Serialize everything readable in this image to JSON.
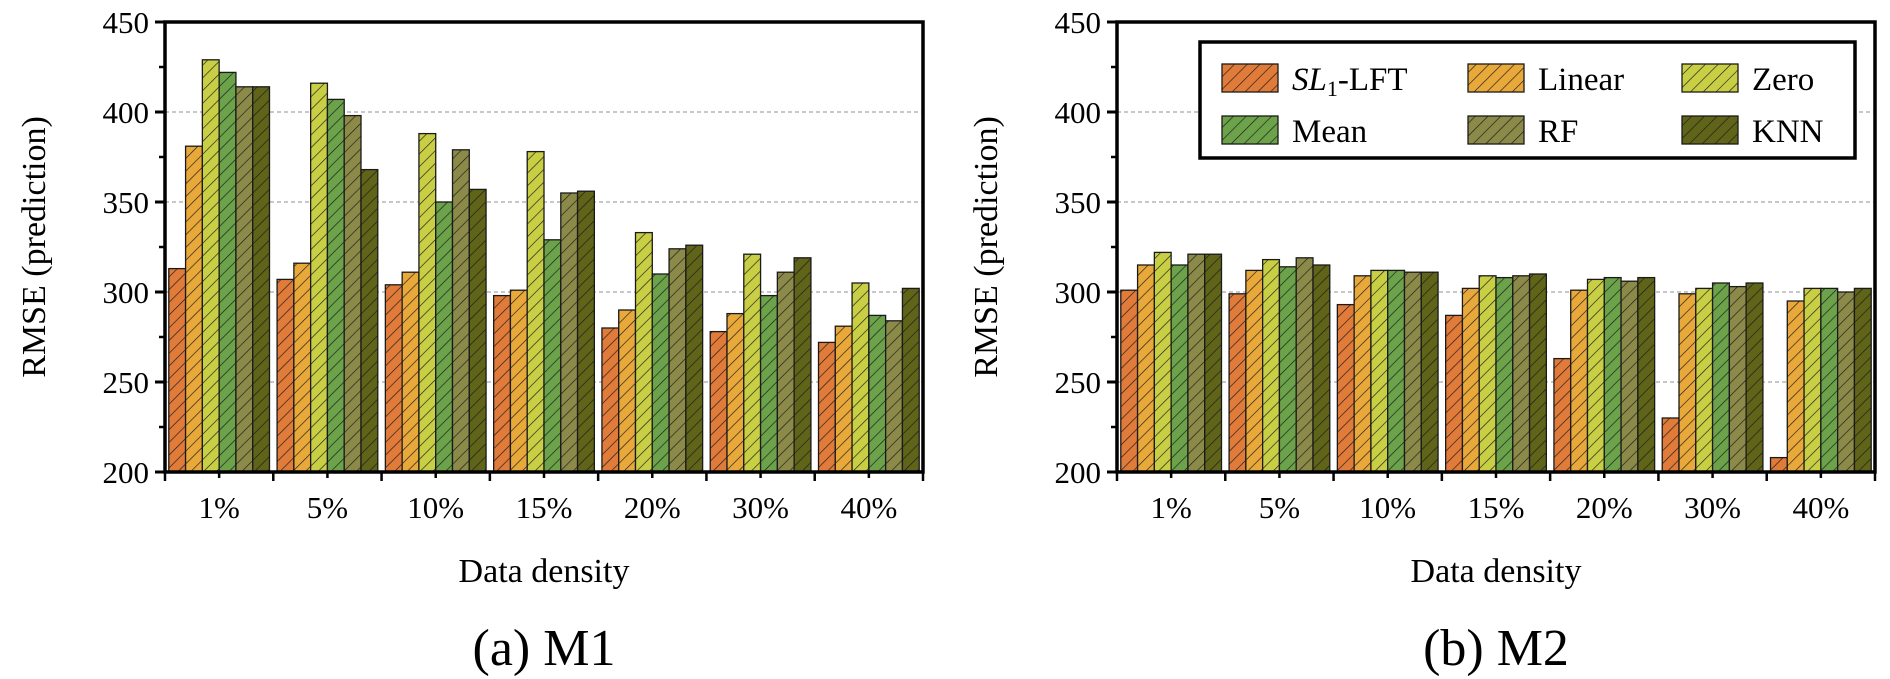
{
  "colors": {
    "SL1-LFT": "#E07B39",
    "Linear": "#E8A93A",
    "Zero": "#C9CF45",
    "Mean": "#6BA24A",
    "RF": "#8C8A48",
    "KNN": "#5F6418"
  },
  "legend_entries": [
    {
      "key": "SL1-LFT",
      "sl": "SL",
      "sub": "1",
      "rest": "-LFT"
    },
    {
      "key": "Linear",
      "label": "Linear"
    },
    {
      "key": "Zero",
      "label": "Zero"
    },
    {
      "key": "Mean",
      "label": "Mean"
    },
    {
      "key": "RF",
      "label": "RF"
    },
    {
      "key": "KNN",
      "label": "KNN"
    }
  ],
  "chart_data": [
    {
      "type": "bar",
      "caption": "(a) M1",
      "xlabel": "Data density",
      "ylabel": "RMSE (prediction)",
      "categories": [
        "1%",
        "5%",
        "10%",
        "15%",
        "20%",
        "30%",
        "40%"
      ],
      "ylim": [
        200,
        450
      ],
      "yticks": [
        200,
        250,
        300,
        350,
        400,
        450
      ],
      "grid": true,
      "legend": "none",
      "series": [
        {
          "name": "SL1-LFT",
          "values": [
            313,
            307,
            304,
            298,
            280,
            278,
            272
          ]
        },
        {
          "name": "Linear",
          "values": [
            381,
            316,
            311,
            301,
            290,
            288,
            281
          ]
        },
        {
          "name": "Zero",
          "values": [
            429,
            416,
            388,
            378,
            333,
            321,
            305
          ]
        },
        {
          "name": "Mean",
          "values": [
            422,
            407,
            350,
            329,
            310,
            298,
            287
          ]
        },
        {
          "name": "RF",
          "values": [
            414,
            398,
            379,
            355,
            324,
            311,
            284
          ]
        },
        {
          "name": "KNN",
          "values": [
            414,
            368,
            357,
            356,
            326,
            319,
            302
          ]
        }
      ]
    },
    {
      "type": "bar",
      "caption": "(b) M2",
      "xlabel": "Data density",
      "ylabel": "RMSE (prediction)",
      "categories": [
        "1%",
        "5%",
        "10%",
        "15%",
        "20%",
        "30%",
        "40%"
      ],
      "ylim": [
        200,
        450
      ],
      "yticks": [
        200,
        250,
        300,
        350,
        400,
        450
      ],
      "grid": true,
      "legend": "top-right",
      "series": [
        {
          "name": "SL1-LFT",
          "values": [
            301,
            299,
            293,
            287,
            263,
            230,
            208
          ]
        },
        {
          "name": "Linear",
          "values": [
            315,
            312,
            309,
            302,
            301,
            299,
            295
          ]
        },
        {
          "name": "Zero",
          "values": [
            322,
            318,
            312,
            309,
            307,
            302,
            302
          ]
        },
        {
          "name": "Mean",
          "values": [
            315,
            314,
            312,
            308,
            308,
            305,
            302
          ]
        },
        {
          "name": "RF",
          "values": [
            321,
            319,
            311,
            309,
            306,
            303,
            300
          ]
        },
        {
          "name": "KNN",
          "values": [
            321,
            315,
            311,
            310,
            308,
            305,
            302
          ]
        }
      ]
    }
  ]
}
